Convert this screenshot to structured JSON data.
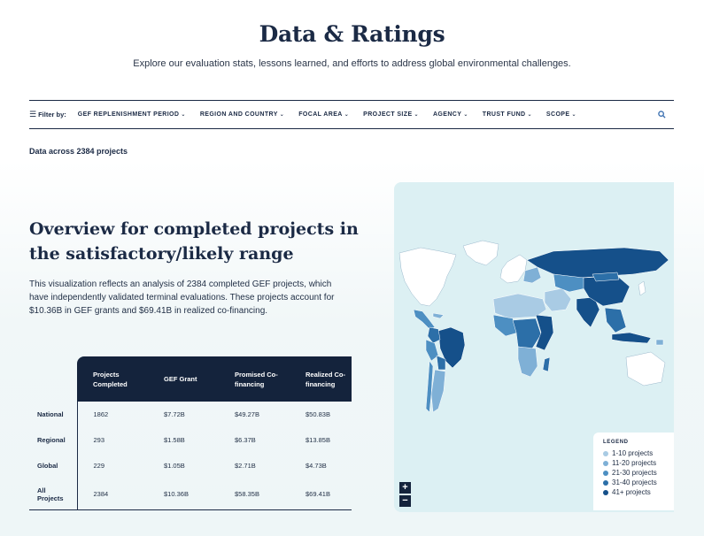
{
  "page": {
    "title": "Data & Ratings",
    "subtitle": "Explore our evaluation stats, lessons learned, and efforts to address global environmental challenges."
  },
  "filters": {
    "label": "Filter by:",
    "icon": "filter-icon",
    "items": [
      {
        "label": "GEF REPLENISHMENT PERIOD"
      },
      {
        "label": "REGION AND COUNTRY"
      },
      {
        "label": "FOCAL AREA"
      },
      {
        "label": "PROJECT SIZE"
      },
      {
        "label": "AGENCY"
      },
      {
        "label": "TRUST FUND"
      },
      {
        "label": "SCOPE"
      }
    ],
    "search_icon": "search-icon"
  },
  "data_summary": "Data across 2384 projects",
  "overview": {
    "heading": "Overview for completed projects in the satisfactory/likely range",
    "text": "This visualization reflects an analysis of 2384 completed GEF projects, which have independently validated terminal evaluations. These projects account for $10.36B in GEF grants and $69.41B in realized co-financing."
  },
  "table": {
    "headers": [
      "Projects Completed",
      "GEF Grant",
      "Promised Co-financing",
      "Realized Co-financing"
    ],
    "rows": [
      {
        "label": "National",
        "values": [
          "1862",
          "$7.72B",
          "$49.27B",
          "$50.83B"
        ]
      },
      {
        "label": "Regional",
        "values": [
          "293",
          "$1.58B",
          "$6.37B",
          "$13.85B"
        ]
      },
      {
        "label": "Global",
        "values": [
          "229",
          "$1.05B",
          "$2.71B",
          "$4.73B"
        ]
      },
      {
        "label": "All Projects",
        "values": [
          "2384",
          "$10.36B",
          "$58.35B",
          "$69.41B"
        ]
      }
    ]
  },
  "map": {
    "zoom_in": "+",
    "zoom_out": "−",
    "legend": {
      "title": "LEGEND",
      "items": [
        {
          "label": "1-10 projects",
          "color": "#a9cbe4"
        },
        {
          "label": "11-20 projects",
          "color": "#7fb0d6"
        },
        {
          "label": "21-30 projects",
          "color": "#4d8fc2"
        },
        {
          "label": "31-40 projects",
          "color": "#2c6fa8"
        },
        {
          "label": "41+ projects",
          "color": "#15508a"
        }
      ]
    }
  }
}
